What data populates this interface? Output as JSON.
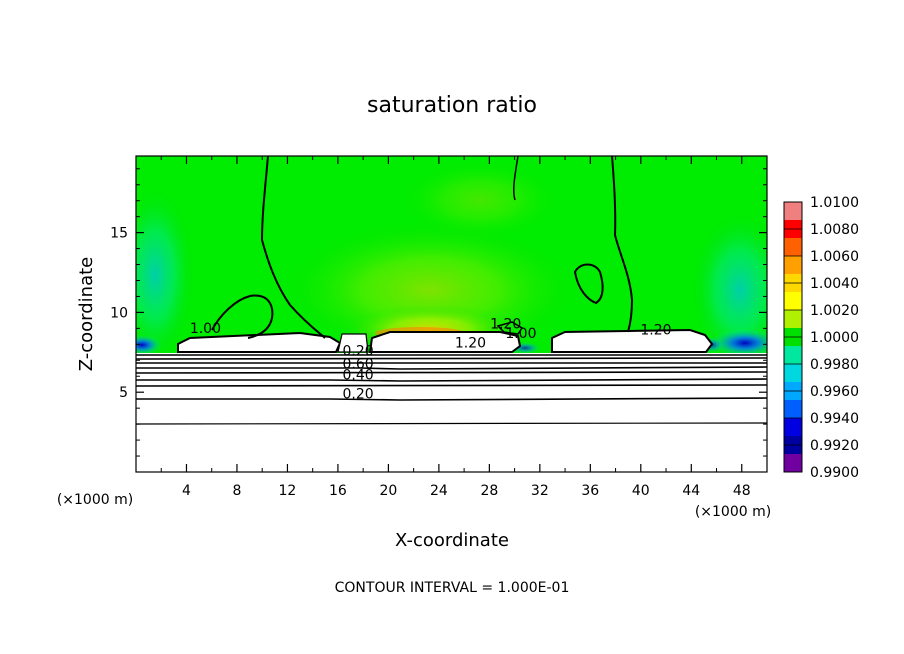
{
  "chart_data": {
    "type": "heatmap",
    "title": "saturation ratio",
    "xlabel": "X-coordinate",
    "ylabel": "Z-coordinate",
    "x_unit_left": "(×1000 m)",
    "x_unit_right": "(×1000 m)",
    "footer": "CONTOUR INTERVAL = 1.000E-01",
    "xlim": [
      0,
      50
    ],
    "ylim": [
      0,
      19.8
    ],
    "x_ticks": [
      4,
      8,
      12,
      16,
      20,
      24,
      28,
      32,
      36,
      40,
      44,
      48
    ],
    "y_ticks": [
      5,
      10,
      15
    ],
    "colorbar": {
      "min": 0.99,
      "max": 1.01,
      "labels": [
        "1.0100",
        "1.0080",
        "1.0060",
        "1.0040",
        "1.0020",
        "1.0000",
        "0.9980",
        "0.9960",
        "0.9940",
        "0.9920",
        "0.9900"
      ],
      "colors": [
        "#f08080",
        "#ff0000",
        "#ff6000",
        "#ffa000",
        "#ffd800",
        "#ffff00",
        "#b0f000",
        "#00e000",
        "#00e8a0",
        "#00d8e0",
        "#00a8ff",
        "#0060ff",
        "#0000e0",
        "#0000a0",
        "#7000a0"
      ]
    },
    "contour_labels": [
      {
        "text": "1.00",
        "x": 5.5,
        "z": 8.7
      },
      {
        "text": "1.20",
        "x": 26.5,
        "z": 7.8
      },
      {
        "text": "1.20",
        "x": 41.2,
        "z": 8.6
      },
      {
        "text": "1.00",
        "x": 30.5,
        "z": 8.4
      },
      {
        "text": "1.20",
        "x": 29.3,
        "z": 9.0
      },
      {
        "text": "0.20",
        "x": 17.6,
        "z": 7.3
      },
      {
        "text": "0.60",
        "x": 17.6,
        "z": 6.5
      },
      {
        "text": "0.40",
        "x": 17.6,
        "z": 5.8
      },
      {
        "text": "0.20",
        "x": 17.6,
        "z": 4.6
      }
    ],
    "background_color": "#00ee00"
  }
}
